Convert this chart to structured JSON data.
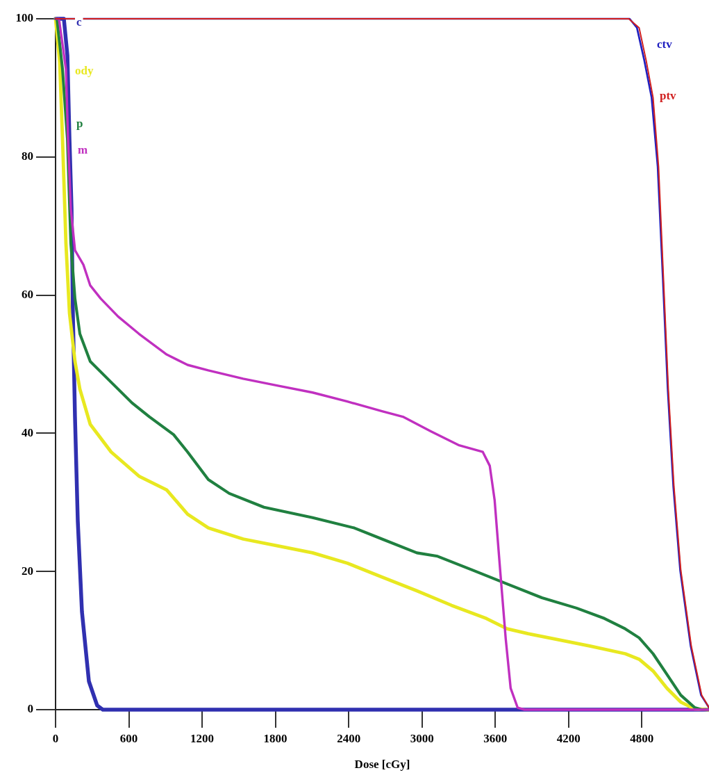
{
  "chart_data": {
    "type": "line",
    "xlabel": "Dose [cGy]",
    "xlim": [
      0,
      5350
    ],
    "ylim": [
      0,
      100
    ],
    "xticks": [
      0,
      600,
      1200,
      1800,
      2400,
      3000,
      3600,
      4200,
      4800
    ],
    "yticks": [
      0,
      20,
      40,
      60,
      80,
      100
    ],
    "legend": false,
    "marker": "none",
    "line_style": "solid",
    "series": [
      {
        "name": "c",
        "color": "#3030b0",
        "x": [
          0,
          68,
          97,
          114,
          131,
          142,
          159,
          182,
          216,
          273,
          341,
          387,
          5350
        ],
        "values": [
          100,
          100,
          94.7,
          82.6,
          72.5,
          57.4,
          42.4,
          27.3,
          14.2,
          4.1,
          0.6,
          0,
          0
        ]
      },
      {
        "name": "ody",
        "color": "#e8e820",
        "x": [
          0,
          34,
          57,
          85,
          114,
          159,
          199,
          284,
          455,
          683,
          910,
          1081,
          1251,
          1536,
          1820,
          2105,
          2389,
          2673,
          2958,
          3242,
          3527,
          3697,
          3868,
          4096,
          4380,
          4664,
          4778,
          4892,
          5006,
          5119,
          5233,
          5350
        ],
        "values": [
          100,
          93.7,
          82.6,
          67.5,
          57.4,
          50.4,
          46.4,
          41.3,
          37.3,
          33.8,
          31.8,
          28.3,
          26.3,
          24.7,
          23.7,
          22.7,
          21.2,
          19.2,
          17.2,
          15.1,
          13.2,
          11.7,
          11,
          10.2,
          9.2,
          8.1,
          7.3,
          5.6,
          3.1,
          1.1,
          0.1,
          0
        ]
      },
      {
        "name": "p",
        "color": "#208040",
        "x": [
          0,
          11,
          57,
          97,
          125,
          159,
          199,
          284,
          455,
          626,
          768,
          967,
          1081,
          1251,
          1422,
          1706,
          2105,
          2446,
          2673,
          2958,
          3128,
          3413,
          3697,
          3982,
          4266,
          4494,
          4664,
          4778,
          4892,
          5006,
          5119,
          5233,
          5290,
          5350
        ],
        "values": [
          100,
          100,
          92.7,
          82.6,
          67.5,
          59.5,
          54.4,
          50.4,
          47.4,
          44.4,
          42.4,
          39.8,
          37.3,
          33.3,
          31.3,
          29.3,
          27.8,
          26.3,
          24.7,
          22.7,
          22.2,
          20.2,
          18.2,
          16.2,
          14.7,
          13.2,
          11.7,
          10.4,
          8.1,
          5.1,
          2.1,
          0.3,
          0,
          0
        ]
      },
      {
        "name": "m",
        "color": "#c030c0",
        "x": [
          0,
          28,
          85,
          102,
          125,
          159,
          228,
          284,
          370,
          512,
          683,
          910,
          1081,
          1251,
          1536,
          1820,
          2105,
          2389,
          2673,
          2844,
          3072,
          3299,
          3498,
          3555,
          3595,
          3640,
          3686,
          3726,
          3783,
          3839,
          5350
        ],
        "values": [
          100,
          100,
          92.7,
          82.6,
          72.5,
          66.5,
          64.4,
          61.4,
          59.5,
          56.9,
          54.4,
          51.4,
          49.9,
          49.1,
          47.9,
          46.9,
          45.9,
          44.6,
          43.2,
          42.4,
          40.3,
          38.3,
          37.3,
          35.3,
          30.3,
          20.2,
          10.2,
          3.1,
          0.3,
          0,
          0
        ]
      },
      {
        "name": "ctv",
        "color": "#2020c0",
        "x": [
          0,
          4700,
          4760,
          4820,
          4880,
          4930,
          4972,
          5012,
          5058,
          5114,
          5200,
          5285,
          5350
        ],
        "values": [
          100,
          100,
          98.7,
          94,
          88.6,
          78.6,
          62.5,
          46.4,
          32.3,
          20.2,
          9.2,
          2.1,
          0.3
        ]
      },
      {
        "name": "ptv",
        "color": "#d02020",
        "x": [
          0,
          4693,
          4778,
          4835,
          4892,
          4937,
          4977,
          5017,
          5063,
          5119,
          5205,
          5290,
          5350
        ],
        "values": [
          100,
          100,
          98.7,
          94,
          88.6,
          78.6,
          62.5,
          46.4,
          32.3,
          20.2,
          9.2,
          2.1,
          0.3
        ]
      }
    ]
  }
}
